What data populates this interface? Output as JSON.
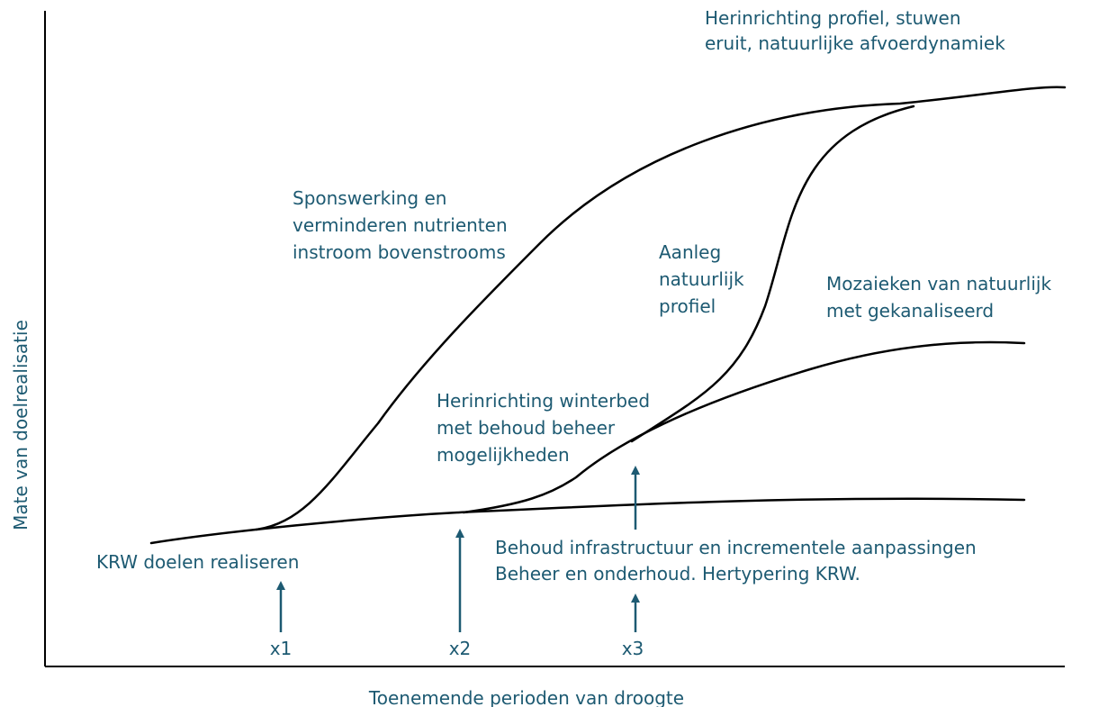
{
  "axes": {
    "y_label": "Mate van doelrealisatie",
    "x_label": "Toenemende perioden van droogte"
  },
  "annotations": [
    {
      "lines": [
        "Herinrichting profiel, stuwen",
        "eruit, natuurlijke afvoerdynamiek"
      ]
    },
    {
      "lines": [
        "Sponswerking en",
        "verminderen nutrienten",
        "instroom bovenstrooms"
      ]
    },
    {
      "lines": [
        "Aanleg",
        "natuurlijk",
        "profiel"
      ]
    },
    {
      "lines": [
        "Mozaieken van natuurlijk",
        "met gekanaliseerd"
      ]
    },
    {
      "lines": [
        "Herinrichting winterbed",
        "met behoud beheer",
        "mogelijkheden"
      ]
    },
    {
      "lines": [
        "Behoud infrastructuur en incrementele aanpassingen",
        "Beheer en onderhoud. Hertypering KRW."
      ]
    },
    {
      "lines": [
        "KRW doelen realiseren"
      ]
    }
  ],
  "markers": [
    "x1",
    "x2",
    "x3"
  ]
}
